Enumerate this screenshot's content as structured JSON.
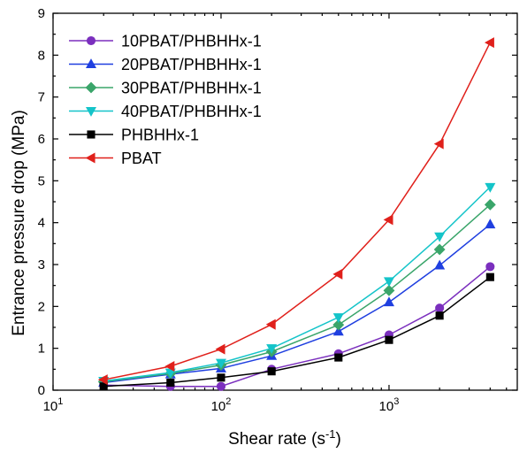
{
  "chart_data": {
    "type": "line",
    "x_scale": "log",
    "xlabel": "Shear rate (s",
    "xlabel_sup": "-1",
    "xlabel_end": ")",
    "ylabel": "Entrance pressure drop (MPa)",
    "xlim": [
      10,
      5800
    ],
    "ylim": [
      0,
      9
    ],
    "y_ticks": [
      "0",
      "1",
      "2",
      "3",
      "4",
      "5",
      "6",
      "7",
      "8",
      "9"
    ],
    "x_ticks": [
      {
        "value": 10,
        "base": "10",
        "exp": "1"
      },
      {
        "value": 100,
        "base": "10",
        "exp": "2"
      },
      {
        "value": 1000,
        "base": "10",
        "exp": "3"
      }
    ],
    "legend_position": "top-left",
    "grid": false,
    "x": [
      20,
      50,
      100,
      200,
      500,
      1000,
      2000,
      4000
    ],
    "series": [
      {
        "name": "10PBAT/PHBHHx-1",
        "color": "#7b2fbe",
        "marker": "circle",
        "values": [
          0.12,
          0.09,
          0.09,
          0.5,
          0.87,
          1.32,
          1.96,
          2.95
        ]
      },
      {
        "name": "20PBAT/PHBHHx-1",
        "color": "#1f3fe0",
        "marker": "triangle-up",
        "values": [
          0.18,
          0.38,
          0.52,
          0.82,
          1.4,
          2.1,
          2.98,
          3.96
        ]
      },
      {
        "name": "30PBAT/PHBHHx-1",
        "color": "#3aa56a",
        "marker": "diamond",
        "values": [
          0.2,
          0.4,
          0.6,
          0.92,
          1.56,
          2.38,
          3.36,
          4.43
        ]
      },
      {
        "name": "40PBAT/PHBHHx-1",
        "color": "#14c4c9",
        "marker": "triangle-down",
        "values": [
          0.22,
          0.42,
          0.65,
          1.0,
          1.74,
          2.6,
          3.67,
          4.85
        ]
      },
      {
        "name": "PHBHHx-1",
        "color": "#000000",
        "marker": "square",
        "values": [
          0.09,
          0.18,
          0.3,
          0.45,
          0.78,
          1.2,
          1.78,
          2.7
        ]
      },
      {
        "name": "PBAT",
        "color": "#e0201b",
        "marker": "triangle-left",
        "values": [
          0.25,
          0.57,
          0.98,
          1.57,
          2.77,
          4.07,
          5.88,
          8.3
        ]
      }
    ]
  }
}
